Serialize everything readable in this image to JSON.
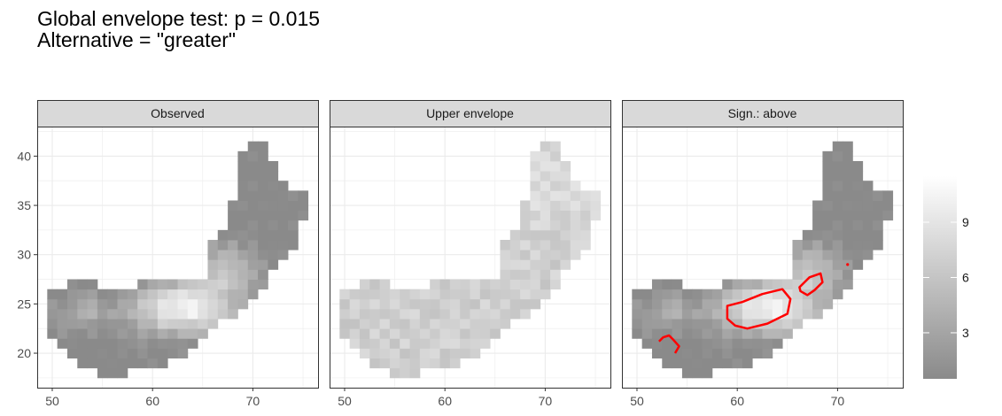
{
  "title": {
    "line1": "Global envelope test: p = 0.015",
    "line2": "Alternative = \"greater\""
  },
  "chart_data": {
    "type": "heatmap",
    "panels": [
      {
        "name": "Observed",
        "surface": "observed"
      },
      {
        "name": "Upper envelope",
        "surface": "upper"
      },
      {
        "name": "Sign.: above",
        "surface": "observed",
        "overlay": "significant-above-contours"
      }
    ],
    "xlim": [
      48.5,
      76.5
    ],
    "ylim": [
      16.5,
      43.0
    ],
    "xticks": [
      50,
      60,
      70
    ],
    "yticks": [
      20,
      25,
      30,
      35,
      40
    ],
    "xlabel": "",
    "ylabel": "",
    "grid": true,
    "legend": {
      "position": "right",
      "breaks": [
        3,
        6,
        9
      ],
      "range": [
        0.5,
        11.5
      ],
      "colors": {
        "low": "#8a8a8a",
        "high": "#ffffff"
      }
    },
    "region_columns": [
      {
        "x": 50,
        "ymin": 22,
        "ymax": 26
      },
      {
        "x": 51,
        "ymin": 21,
        "ymax": 26
      },
      {
        "x": 52,
        "ymin": 20,
        "ymax": 27
      },
      {
        "x": 53,
        "ymin": 19,
        "ymax": 27
      },
      {
        "x": 54,
        "ymin": 19,
        "ymax": 27
      },
      {
        "x": 55,
        "ymin": 18,
        "ymax": 26
      },
      {
        "x": 56,
        "ymin": 18,
        "ymax": 26
      },
      {
        "x": 57,
        "ymin": 18,
        "ymax": 26
      },
      {
        "x": 58,
        "ymin": 19,
        "ymax": 26
      },
      {
        "x": 59,
        "ymin": 19,
        "ymax": 27
      },
      {
        "x": 60,
        "ymin": 19,
        "ymax": 27
      },
      {
        "x": 61,
        "ymin": 19,
        "ymax": 27
      },
      {
        "x": 62,
        "ymin": 20,
        "ymax": 27
      },
      {
        "x": 63,
        "ymin": 20,
        "ymax": 27
      },
      {
        "x": 64,
        "ymin": 21,
        "ymax": 27
      },
      {
        "x": 65,
        "ymin": 22,
        "ymax": 27
      },
      {
        "x": 66,
        "ymin": 23,
        "ymax": 31
      },
      {
        "x": 67,
        "ymin": 24,
        "ymax": 32
      },
      {
        "x": 68,
        "ymin": 24,
        "ymax": 35
      },
      {
        "x": 69,
        "ymin": 25,
        "ymax": 40
      },
      {
        "x": 70,
        "ymin": 26,
        "ymax": 41
      },
      {
        "x": 71,
        "ymin": 27,
        "ymax": 41
      },
      {
        "x": 72,
        "ymin": 29,
        "ymax": 39
      },
      {
        "x": 73,
        "ymin": 30,
        "ymax": 37
      },
      {
        "x": 74,
        "ymin": 31,
        "ymax": 36
      },
      {
        "x": 75,
        "ymin": 34,
        "ymax": 36
      }
    ],
    "hotspot": {
      "x": 63,
      "y": 24.5,
      "peak": 10.5
    },
    "contours": [
      [
        [
          59.0,
          24.8
        ],
        [
          60.5,
          25.2
        ],
        [
          62.5,
          26.0
        ],
        [
          64.5,
          26.5
        ],
        [
          65.3,
          25.5
        ],
        [
          65.0,
          24.0
        ],
        [
          63.0,
          23.0
        ],
        [
          61.0,
          22.5
        ],
        [
          59.8,
          22.8
        ],
        [
          59.0,
          23.5
        ]
      ],
      [
        [
          66.2,
          26.7
        ],
        [
          67.2,
          27.7
        ],
        [
          68.3,
          28.1
        ],
        [
          68.5,
          27.2
        ],
        [
          67.7,
          26.4
        ],
        [
          67.0,
          25.9
        ],
        [
          66.3,
          26.3
        ]
      ],
      [
        [
          52.2,
          21.2
        ],
        [
          52.6,
          21.6
        ],
        [
          53.2,
          21.8
        ],
        [
          53.6,
          21.4
        ],
        [
          54.2,
          20.7
        ],
        [
          53.8,
          20.0
        ]
      ]
    ],
    "point": {
      "x": 71.0,
      "y": 29.0
    }
  }
}
